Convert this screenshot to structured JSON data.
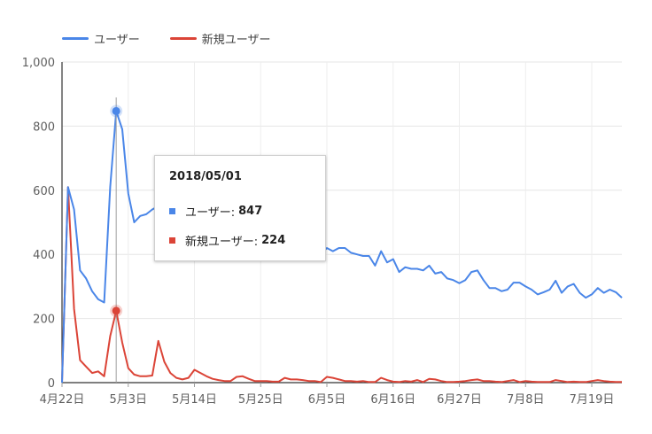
{
  "chart_data": {
    "type": "line",
    "series": [
      {
        "name": "ユーザー",
        "color": "#4a86e8",
        "values": [
          0,
          610,
          540,
          350,
          325,
          285,
          260,
          250,
          610,
          847,
          790,
          590,
          500,
          520,
          525,
          540,
          550,
          430,
          430,
          420,
          440,
          420,
          430,
          420,
          440,
          430,
          410,
          420,
          410,
          420,
          400,
          405,
          430,
          410,
          430,
          410,
          420,
          430,
          400,
          410,
          420,
          430,
          415,
          400,
          420,
          410,
          420,
          420,
          405,
          400,
          395,
          395,
          365,
          410,
          375,
          385,
          345,
          360,
          355,
          355,
          350,
          365,
          340,
          345,
          325,
          320,
          310,
          320,
          345,
          350,
          320,
          295,
          295,
          285,
          290,
          312,
          312,
          300,
          290,
          275,
          282,
          290,
          318,
          280,
          300,
          308,
          280,
          265,
          275,
          295,
          280,
          290,
          282,
          265
        ]
      },
      {
        "name": "新規ユーザー",
        "color": "#db4437",
        "values": [
          0,
          610,
          230,
          70,
          50,
          30,
          35,
          20,
          145,
          224,
          125,
          45,
          25,
          20,
          20,
          22,
          130,
          65,
          30,
          15,
          10,
          15,
          40,
          30,
          20,
          12,
          8,
          5,
          5,
          18,
          20,
          12,
          5,
          5,
          5,
          3,
          3,
          15,
          10,
          10,
          8,
          5,
          5,
          2,
          18,
          15,
          10,
          5,
          5,
          3,
          5,
          2,
          2,
          15,
          8,
          3,
          2,
          5,
          3,
          8,
          2,
          12,
          10,
          5,
          2,
          2,
          3,
          5,
          8,
          10,
          5,
          5,
          3,
          2,
          5,
          8,
          2,
          5,
          3,
          2,
          2,
          2,
          8,
          5,
          2,
          3,
          2,
          2,
          5,
          8,
          5,
          3,
          2,
          2
        ]
      }
    ],
    "x_labels": [
      "4月22日",
      "5月3日",
      "5月14日",
      "5月25日",
      "6月5日",
      "6月16日",
      "6月27日",
      "7月8日",
      "7月19日"
    ],
    "y_ticks": [
      "0",
      "200",
      "400",
      "600",
      "800",
      "1,000"
    ],
    "ylim": [
      0,
      1000
    ],
    "legend_position": "top-left",
    "highlight_index": 9,
    "tooltip": {
      "date": "2018/05/01",
      "rows": [
        {
          "label": "ユーザー: ",
          "value": "847",
          "color": "#4a86e8"
        },
        {
          "label": "新規ユーザー: ",
          "value": "224",
          "color": "#db4437"
        }
      ]
    }
  }
}
